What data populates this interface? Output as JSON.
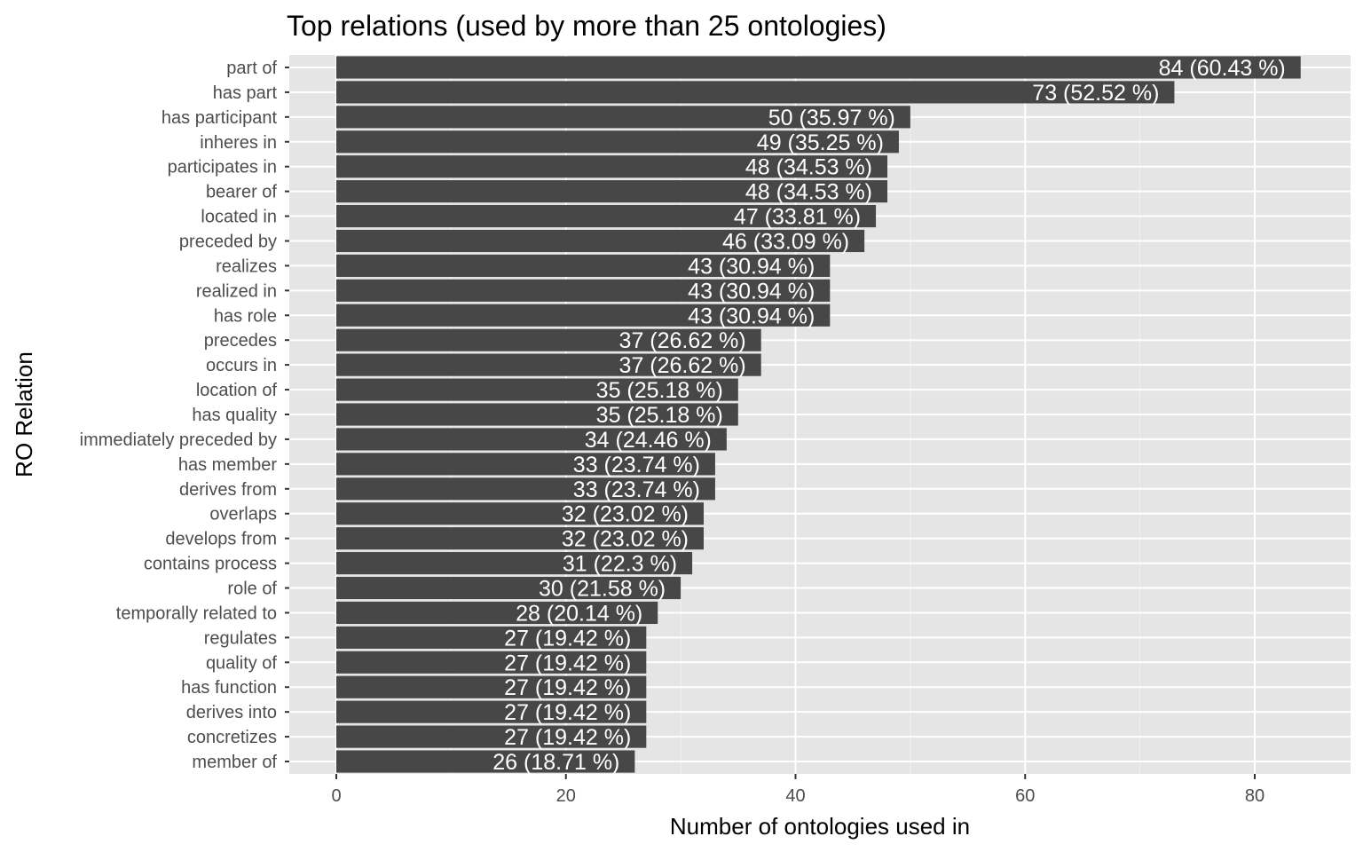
{
  "chart_data": {
    "type": "bar",
    "orientation": "horizontal",
    "title": "Top relations (used by more than 25 ontologies)",
    "xlabel": "Number of ontologies used in",
    "ylabel": "RO Relation",
    "xlim": [
      0,
      88
    ],
    "xticks": [
      0,
      20,
      40,
      60,
      80
    ],
    "grid": true,
    "bar_color": "#474747",
    "panel_color": "#e5e5e5",
    "categories": [
      "part of",
      "has part",
      "has participant",
      "inheres in",
      "participates in",
      "bearer of",
      "located in",
      "preceded by",
      "realizes",
      "realized in",
      "has role",
      "precedes",
      "occurs in",
      "location of",
      "has quality",
      "immediately preceded by",
      "has member",
      "derives from",
      "overlaps",
      "develops from",
      "contains process",
      "role of",
      "temporally related to",
      "regulates",
      "quality of",
      "has function",
      "derives into",
      "concretizes",
      "member of"
    ],
    "values": [
      84,
      73,
      50,
      49,
      48,
      48,
      47,
      46,
      43,
      43,
      43,
      37,
      37,
      35,
      35,
      34,
      33,
      33,
      32,
      32,
      31,
      30,
      28,
      27,
      27,
      27,
      27,
      27,
      26
    ],
    "labels": [
      "84 (60.43 %)",
      "73 (52.52 %)",
      "50 (35.97 %)",
      "49 (35.25 %)",
      "48 (34.53 %)",
      "48 (34.53 %)",
      "47 (33.81 %)",
      "46 (33.09 %)",
      "43 (30.94 %)",
      "43 (30.94 %)",
      "43 (30.94 %)",
      "37 (26.62 %)",
      "37 (26.62 %)",
      "35 (25.18 %)",
      "35 (25.18 %)",
      "34 (24.46 %)",
      "33 (23.74 %)",
      "33 (23.74 %)",
      "32 (23.02 %)",
      "32 (23.02 %)",
      "31 (22.3 %)",
      "30 (21.58 %)",
      "28 (20.14 %)",
      "27 (19.42 %)",
      "27 (19.42 %)",
      "27 (19.42 %)",
      "27 (19.42 %)",
      "27 (19.42 %)",
      "26 (18.71 %)"
    ]
  }
}
